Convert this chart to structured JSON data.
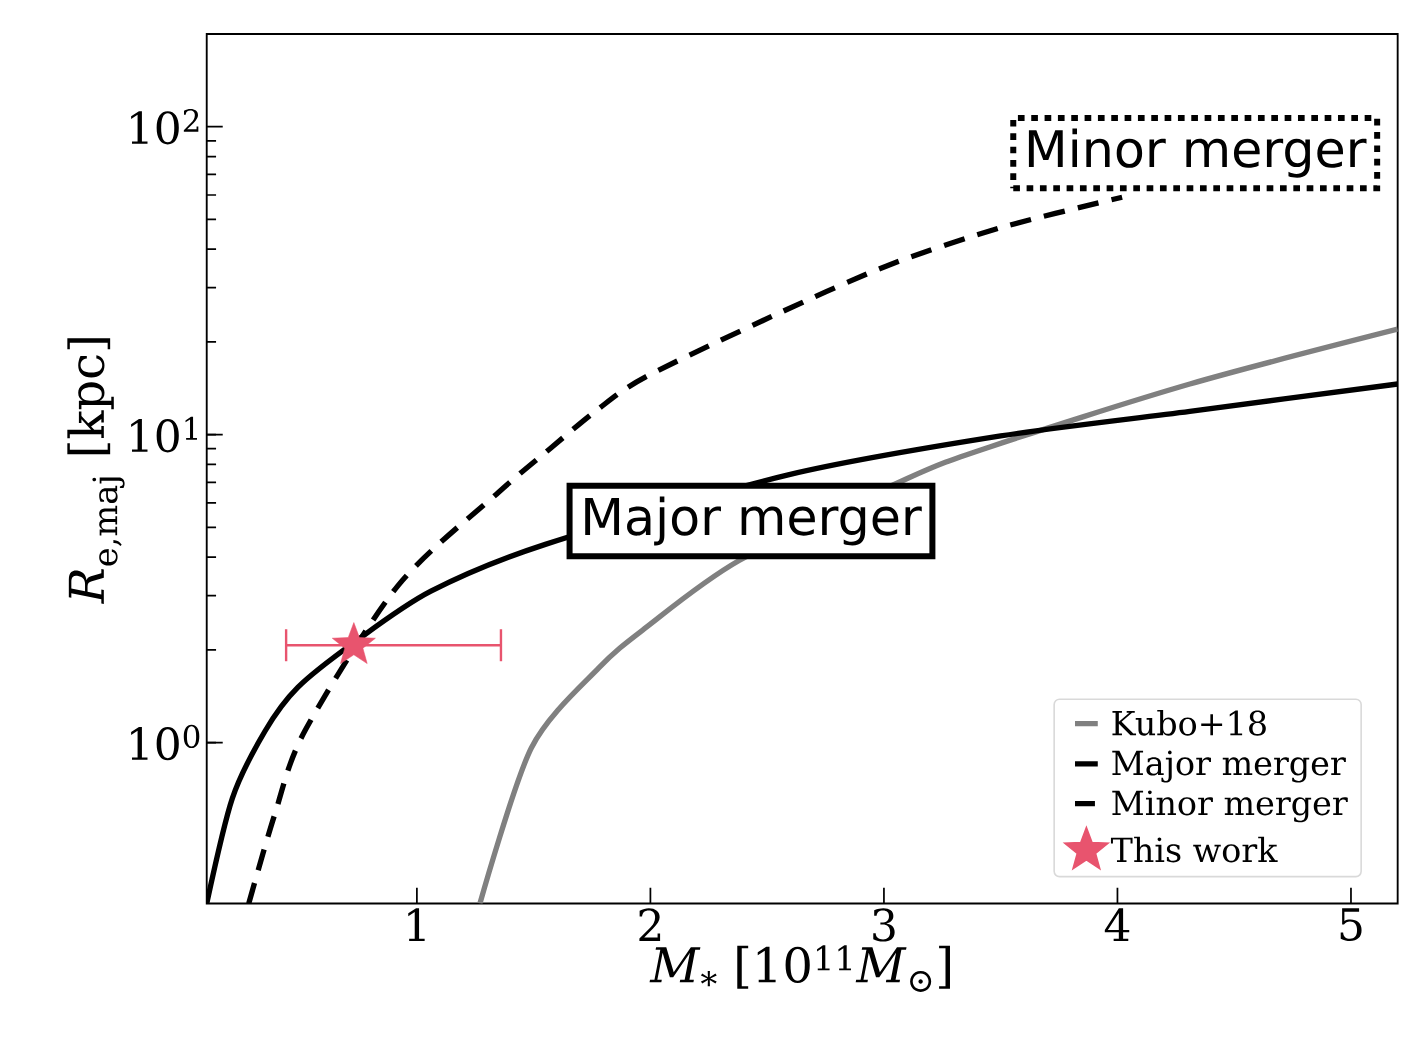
{
  "chart_data": {
    "type": "line",
    "xlabel": "*M*$_{*}$ [10$^{11}$*M*$_{⊙}$]",
    "ylabel": "*R*$_{e,maj}$ [kpc]",
    "xlim": [
      0.1,
      5.2
    ],
    "ylim": [
      0.3,
      200
    ],
    "log": "y",
    "xticks": [
      1,
      2,
      3,
      4,
      5
    ],
    "yticks": [
      {
        "value": 1,
        "label": "10$^{0}$"
      },
      {
        "value": 10,
        "label": "10$^{1}$"
      },
      {
        "value": 100,
        "label": "10$^{2}$"
      }
    ],
    "legend": "bottom right",
    "grid": false,
    "series": [
      {
        "name": "Kubo+18",
        "color": "#808080",
        "line_style": "solid",
        "x": [
          1.27,
          1.49,
          1.78,
          1.98,
          2.38,
          3.1,
          3.45,
          4.31,
          5.2
        ],
        "values": [
          0.3,
          0.96,
          1.75,
          2.36,
          3.9,
          7.2,
          9.1,
          14.6,
          22.0
        ]
      },
      {
        "name": "Major merger",
        "color": "#000000",
        "line_style": "solid",
        "x": [
          0.1,
          0.21,
          0.35,
          0.49,
          0.73,
          1.06,
          1.55,
          2.59,
          3.5,
          4.31,
          5.2
        ],
        "values": [
          0.3,
          0.66,
          1.09,
          1.51,
          2.11,
          3.1,
          4.4,
          7.4,
          9.9,
          11.9,
          14.6
        ]
      },
      {
        "name": "Minor merger",
        "color": "#000000",
        "line_style": "dashed",
        "x": [
          0.28,
          0.39,
          0.52,
          0.75,
          0.92,
          1.35,
          1.57,
          1.77,
          1.98,
          2.54,
          3.02,
          3.5,
          4.02
        ],
        "values": [
          0.3,
          0.58,
          1.09,
          null,
          3.24,
          6.5,
          9.0,
          12.0,
          15.4,
          24.6,
          35.5,
          47,
          59
        ]
      },
      {
        "name": "This work",
        "type": "scatter",
        "marker": "star",
        "color": "#e8546e",
        "x": [
          0.73
        ],
        "values": [
          2.07
        ],
        "xerrors": [
          [
            0.44,
            1.36
          ]
        ]
      }
    ],
    "annotations": [
      "Major merger",
      "Minor merger"
    ]
  }
}
